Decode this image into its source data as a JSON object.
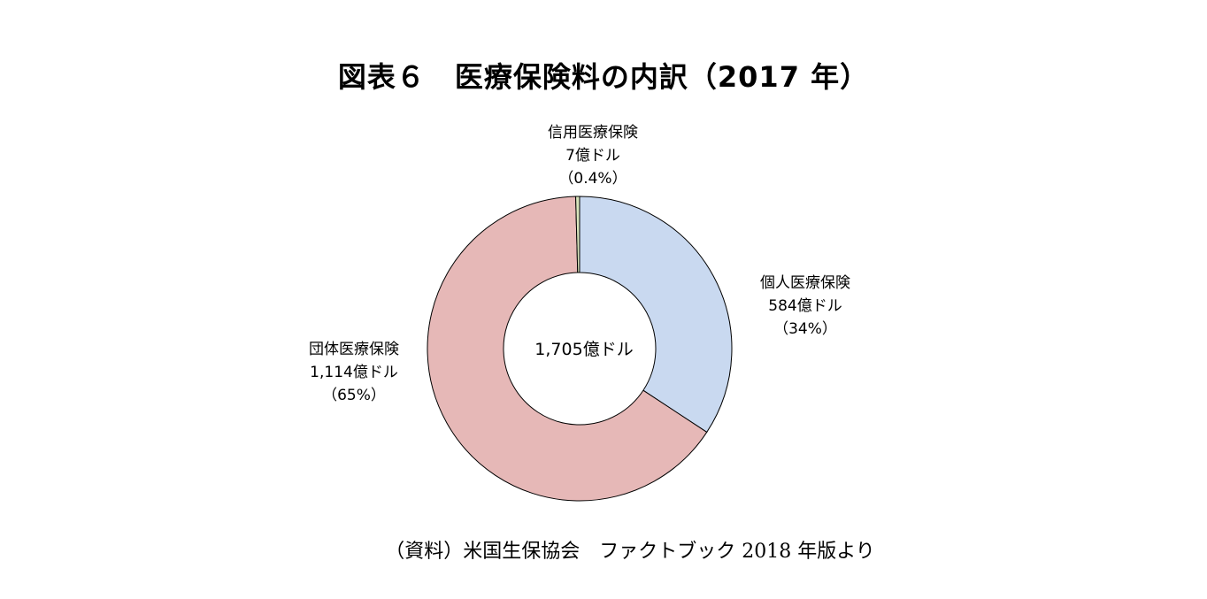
{
  "chart_data": {
    "type": "donut",
    "title": "図表６　医療保険料の内訳（2017 年）",
    "center_label": "1,705億ドル",
    "total": 1705,
    "unit": "億ドル",
    "slices": [
      {
        "name": "個人医療保険",
        "value": 584,
        "value_label": "584億ドル",
        "percent_label": "（34%）",
        "color": "#c9d9f0"
      },
      {
        "name": "団体医療保険",
        "value": 1114,
        "value_label": "1,114億ドル",
        "percent_label": "（65%）",
        "color": "#e6b8b7"
      },
      {
        "name": "信用医療保険",
        "value": 7,
        "value_label": "7億ドル",
        "percent_label": "（0.4%）",
        "color": "#d8e4bc"
      }
    ],
    "start_angle_deg": 0,
    "direction": "clockwise",
    "legend": "none"
  },
  "source": "（資料）米国生保協会　ファクトブック 2018 年版より"
}
